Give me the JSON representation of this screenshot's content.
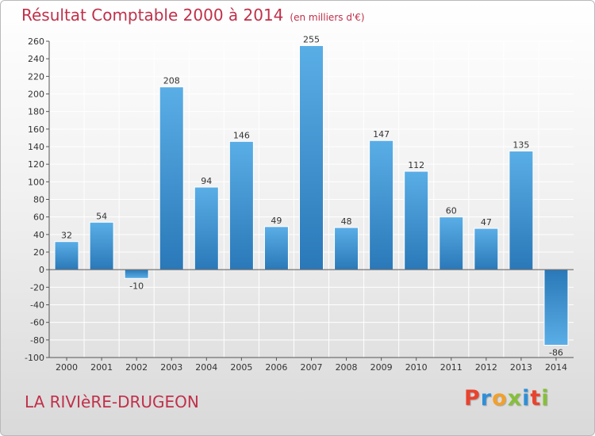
{
  "header": {
    "title": "Résultat Comptable 2000 à 2014",
    "subtitle": "(en milliers d'€)"
  },
  "footer": {
    "commune": "LA RIVIèRE-DRUGEON",
    "logo_letters": [
      "P",
      "r",
      "o",
      "x",
      "i",
      "t",
      "i"
    ],
    "logo_colors": [
      "#e8432f",
      "#2f8fd8",
      "#f2a02a",
      "#86bf3a",
      "#2f8fd8",
      "#e8432f",
      "#86bf3a"
    ]
  },
  "colors": {
    "title": "#c0304a",
    "bar_light": "#5aaee6",
    "bar_dark": "#2a78b8",
    "grid": "#ffffff",
    "axis": "#555555"
  },
  "chart_data": {
    "type": "bar",
    "categories": [
      "2000",
      "2001",
      "2002",
      "2003",
      "2004",
      "2005",
      "2006",
      "2007",
      "2008",
      "2009",
      "2010",
      "2011",
      "2012",
      "2013",
      "2014"
    ],
    "values": [
      32,
      54,
      -10,
      208,
      94,
      146,
      49,
      255,
      48,
      147,
      112,
      60,
      47,
      135,
      -86
    ],
    "title": "Résultat Comptable 2000 à 2014",
    "xlabel": "",
    "ylabel": "",
    "ylim": [
      -100,
      260
    ],
    "yticks": [
      -100,
      -80,
      -60,
      -40,
      -20,
      0,
      20,
      40,
      60,
      80,
      100,
      120,
      140,
      160,
      180,
      200,
      220,
      240,
      260
    ],
    "grid": true
  }
}
